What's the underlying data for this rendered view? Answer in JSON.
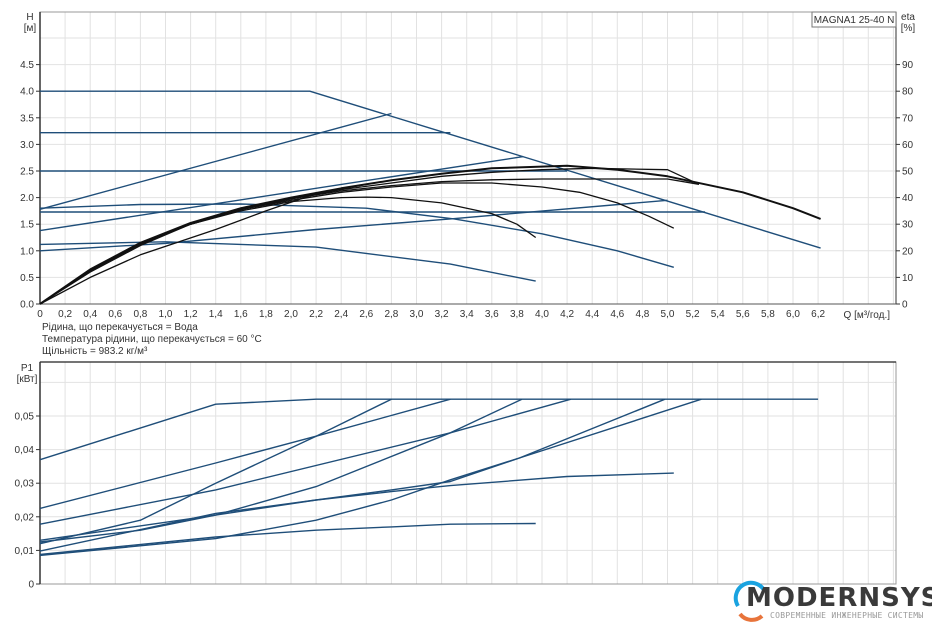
{
  "product_label": "MAGNA1 25-40 N",
  "notes": [
    "Рідина, що перекачується = Вода",
    "Температура рідини, що перекачується = 60 °C",
    "Щільність = 983.2 кг/м³"
  ],
  "logo": {
    "word": "MODERNSYS",
    "subtitle": "СОВРЕМЕННЫЕ ИНЖЕНЕРНЫЕ СИСТЕМЫ",
    "accent": "#1aa3e0",
    "accent2": "#e8743b"
  },
  "colors": {
    "head_curves": "#1f4e79",
    "eta_curves": "#111111",
    "power_curves": "#1f4e79",
    "grid": "#e2e2e2"
  },
  "chart_data": [
    {
      "type": "line",
      "title": "",
      "xlabel": "Q [м³/год.]",
      "ylabel": "H [м]",
      "y2label": "eta [%]",
      "xlim": [
        0,
        6.8
      ],
      "ylim": [
        0,
        5.5
      ],
      "y2lim": [
        0,
        110
      ],
      "grid": true,
      "xticks": [
        "0",
        "0,2",
        "0,4",
        "0,6",
        "0,8",
        "1,0",
        "1,2",
        "1,4",
        "1,6",
        "1,8",
        "2,0",
        "2,2",
        "2,4",
        "2,6",
        "2,8",
        "3,0",
        "3,2",
        "3,4",
        "3,6",
        "3,8",
        "4,0",
        "4,2",
        "4,4",
        "4,6",
        "4,8",
        "5,0",
        "5,2",
        "5,4",
        "5,6",
        "5,8",
        "6,0",
        "6,2"
      ],
      "yticks": [
        "0.0",
        "0.5",
        "1.0",
        "1.5",
        "2.0",
        "2.5",
        "3.0",
        "3.5",
        "4.0",
        "4.5"
      ],
      "y2ticks": [
        "0",
        "10",
        "20",
        "30",
        "40",
        "50",
        "60",
        "70",
        "80",
        "90"
      ],
      "head_series": [
        {
          "x": [
            0,
            2.15,
            6.22
          ],
          "y": [
            4.0,
            4.0,
            1.05
          ]
        },
        {
          "x": [
            0,
            3.27
          ],
          "y": [
            3.22,
            3.22
          ]
        },
        {
          "x": [
            0,
            4.2
          ],
          "y": [
            2.5,
            2.5
          ]
        },
        {
          "x": [
            0,
            5.3
          ],
          "y": [
            1.73,
            1.73
          ]
        },
        {
          "x": [
            0,
            2.8
          ],
          "y": [
            1.78,
            3.58
          ]
        },
        {
          "x": [
            0,
            3.85
          ],
          "y": [
            1.38,
            2.77
          ]
        },
        {
          "x": [
            0,
            1.0,
            2.2,
            3.27,
            5.0
          ],
          "y": [
            1.0,
            1.14,
            1.4,
            1.6,
            1.95
          ]
        },
        {
          "x": [
            0,
            0.8,
            1.6,
            2.6,
            3.3,
            4.0,
            4.6,
            5.05
          ],
          "y": [
            1.8,
            1.87,
            1.88,
            1.8,
            1.6,
            1.32,
            1.0,
            0.69
          ]
        },
        {
          "x": [
            0,
            1.0,
            2.2,
            3.27,
            3.95
          ],
          "y": [
            1.12,
            1.17,
            1.07,
            0.75,
            0.43
          ]
        }
      ],
      "eta_series": [
        {
          "x": [
            0,
            0.4,
            0.8,
            1.2,
            1.6,
            2.0,
            2.4,
            2.8,
            3.2,
            3.6,
            4.2,
            4.6,
            5.0,
            5.3,
            5.6,
            6.0,
            6.22
          ],
          "y": [
            0,
            13,
            23,
            30.5,
            36,
            40,
            43.5,
            46.5,
            49,
            51,
            52,
            50.5,
            48,
            45,
            42,
            36,
            32
          ]
        },
        {
          "x": [
            0,
            0.4,
            0.8,
            1.2,
            1.6,
            2.0,
            2.4,
            2.8,
            3.2,
            3.6,
            4.0,
            4.4,
            5.0,
            5.25
          ],
          "y": [
            0,
            12.5,
            22.5,
            30,
            35.5,
            39.5,
            43,
            45.5,
            48,
            49.5,
            50.5,
            51,
            50.5,
            45
          ]
        },
        {
          "x": [
            0,
            0.4,
            0.8,
            1.2,
            1.6,
            2.0,
            2.4,
            2.8,
            3.2,
            3.6,
            4.0,
            4.6,
            5.0,
            5.25
          ],
          "y": [
            0,
            12.5,
            22.5,
            30,
            35.5,
            39.5,
            42.5,
            44.5,
            46,
            46.7,
            47,
            47,
            47,
            45
          ]
        },
        {
          "x": [
            0,
            0.4,
            0.8,
            1.2,
            1.6,
            2.0,
            2.4,
            2.8,
            3.2,
            3.6,
            4.0,
            4.3,
            4.6,
            4.85,
            5.05
          ],
          "y": [
            0,
            12.5,
            22.5,
            30,
            35.5,
            39,
            42,
            44,
            45.5,
            45.5,
            44,
            42,
            38,
            33,
            28.5
          ]
        },
        {
          "x": [
            0,
            0.4,
            0.8,
            1.2,
            1.6,
            2.0,
            2.4,
            2.6,
            2.8,
            3.2,
            3.6,
            3.8,
            3.95
          ],
          "y": [
            0,
            12,
            22,
            30,
            35,
            38.5,
            40,
            40.2,
            40,
            38,
            34,
            30,
            25
          ]
        },
        {
          "x": [
            0,
            0.4,
            0.8,
            1.4,
            1.8,
            2.2,
            2.6
          ],
          "y": [
            0,
            10,
            18.5,
            28,
            35,
            41.5,
            45
          ]
        }
      ]
    },
    {
      "type": "line",
      "title": "",
      "xlabel": "",
      "ylabel": "P1 [кВт]",
      "xlim": [
        0,
        6.8
      ],
      "ylim": [
        0,
        0.066
      ],
      "grid": true,
      "yticks": [
        "0",
        "0,01",
        "0,02",
        "0,03",
        "0,04",
        "0,05"
      ],
      "power_series": [
        {
          "x": [
            0,
            1.4,
            2.2,
            6.2
          ],
          "y": [
            0.037,
            0.0535,
            0.055,
            0.055
          ]
        },
        {
          "x": [
            0,
            1.4,
            2.2,
            3.27
          ],
          "y": [
            0.0225,
            0.036,
            0.044,
            0.055
          ]
        },
        {
          "x": [
            0,
            0.8,
            1.4,
            2.2,
            2.8
          ],
          "y": [
            0.012,
            0.019,
            0.03,
            0.044,
            0.055
          ]
        },
        {
          "x": [
            0,
            1.4,
            3.27,
            3.84
          ],
          "y": [
            0.0178,
            0.028,
            0.045,
            0.055
          ]
        },
        {
          "x": [
            0,
            0.8,
            1.4,
            2.2,
            3.27,
            4.23
          ],
          "y": [
            0.0125,
            0.016,
            0.0205,
            0.029,
            0.045,
            0.055
          ]
        },
        {
          "x": [
            0,
            1.4,
            2.2,
            2.8,
            3.27,
            3.82,
            4.98
          ],
          "y": [
            0.0098,
            0.021,
            0.025,
            0.028,
            0.0305,
            0.0375,
            0.055
          ]
        },
        {
          "x": [
            0,
            1.4,
            2.2,
            2.8,
            3.27,
            3.82,
            5.27
          ],
          "y": [
            0.0085,
            0.0135,
            0.019,
            0.025,
            0.031,
            0.0375,
            0.055
          ]
        },
        {
          "x": [
            0,
            1.4,
            2.2,
            2.8,
            3.27,
            4.2,
            5.05
          ],
          "y": [
            0.013,
            0.0205,
            0.025,
            0.0275,
            0.0293,
            0.032,
            0.033
          ]
        },
        {
          "x": [
            0,
            1.4,
            2.2,
            2.8,
            3.27,
            3.95
          ],
          "y": [
            0.0088,
            0.014,
            0.016,
            0.017,
            0.0178,
            0.018
          ]
        }
      ]
    }
  ]
}
